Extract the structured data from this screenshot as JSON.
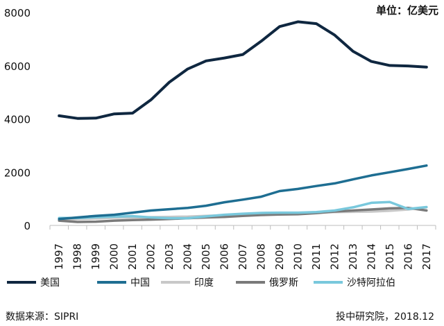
{
  "chart_data": {
    "type": "line",
    "unit_label": "单位：亿美元",
    "x": [
      "1997",
      "1998",
      "1999",
      "2000",
      "2001",
      "2002",
      "2003",
      "2004",
      "2005",
      "2006",
      "2007",
      "2008",
      "2009",
      "2010",
      "2011",
      "2012",
      "2013",
      "2014",
      "2015",
      "2016",
      "2017"
    ],
    "ylim": [
      0,
      8000
    ],
    "yticks": [
      0,
      2000,
      4000,
      6000,
      8000
    ],
    "series": [
      {
        "name": "美国",
        "color": "#0f2740",
        "values": [
          4120,
          4020,
          4030,
          4190,
          4220,
          4720,
          5380,
          5880,
          6180,
          6290,
          6420,
          6920,
          7470,
          7650,
          7580,
          7150,
          6540,
          6160,
          6010,
          5990,
          5950
        ]
      },
      {
        "name": "中国",
        "color": "#1e6e92",
        "values": [
          240,
          300,
          360,
          400,
          480,
          560,
          610,
          660,
          740,
          870,
          970,
          1080,
          1290,
          1370,
          1480,
          1580,
          1730,
          1880,
          2000,
          2120,
          2250
        ]
      },
      {
        "name": "印度",
        "color": "#c8c8c8",
        "values": [
          210,
          240,
          260,
          290,
          300,
          310,
          320,
          330,
          360,
          380,
          400,
          430,
          440,
          460,
          490,
          500,
          510,
          520,
          550,
          600,
          680
        ]
      },
      {
        "name": "俄罗斯",
        "color": "#7a7a7a",
        "values": [
          180,
          130,
          140,
          180,
          200,
          220,
          240,
          270,
          300,
          320,
          360,
          390,
          410,
          420,
          460,
          520,
          560,
          600,
          640,
          660,
          560
        ]
      },
      {
        "name": "沙特阿拉伯",
        "color": "#79c8dc",
        "values": [
          280,
          280,
          310,
          330,
          350,
          300,
          270,
          270,
          340,
          400,
          440,
          470,
          480,
          480,
          500,
          560,
          680,
          850,
          880,
          620,
          690
        ]
      }
    ]
  },
  "footer": {
    "source": "数据来源：SIPRI",
    "credit": "投中研究院，2018.12"
  }
}
